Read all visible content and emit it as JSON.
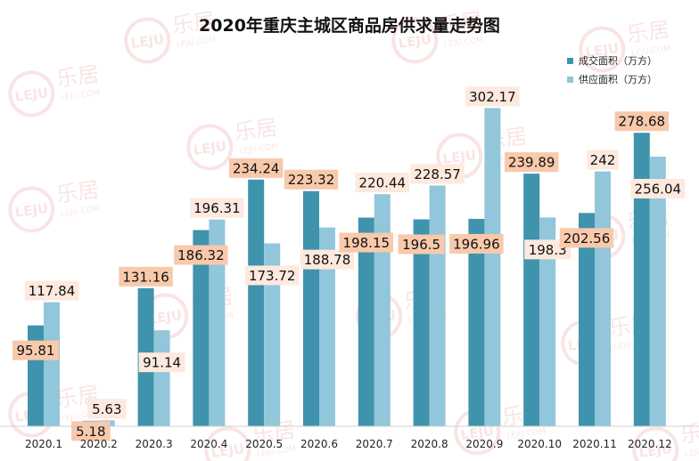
{
  "chart_data": {
    "type": "bar",
    "title": "2020年重庆主城区商品房供求量走势图",
    "categories": [
      "2020.1",
      "2020.2",
      "2020.3",
      "2020.4",
      "2020.5",
      "2020.6",
      "2020.7",
      "2020.8",
      "2020.9",
      "2020.10",
      "2020.11",
      "2020.12"
    ],
    "series": [
      {
        "name": "成交面积（万方）",
        "color": "#3f93ad",
        "values": [
          95.81,
          5.18,
          131.16,
          186.32,
          234.24,
          223.32,
          198.15,
          196.5,
          196.96,
          239.89,
          202.56,
          278.68
        ],
        "labels": [
          "95.81",
          "5.18",
          "131.16",
          "186.32",
          "234.24",
          "223.32",
          "198.15",
          "196.5",
          "196.96",
          "239.89",
          "202.56",
          "278.68"
        ]
      },
      {
        "name": "供应面积（万方）",
        "color": "#92c6da",
        "values": [
          117.84,
          5.63,
          91.14,
          196.31,
          173.72,
          188.78,
          220.44,
          228.57,
          302.17,
          198.3,
          242,
          256.04
        ],
        "labels": [
          "117.84",
          "5.63",
          "91.14",
          "196.31",
          "173.72",
          "188.78",
          "220.44",
          "228.57",
          "302.17",
          "198.3",
          "242",
          "256.04"
        ]
      }
    ],
    "xlabel": "",
    "ylabel": "",
    "ylim": [
      0,
      310
    ],
    "grid": false,
    "legend": "top-right"
  },
  "watermark": {
    "logo_text": "LEJU",
    "brand": "乐居",
    "sub": "LEJU.COM"
  }
}
